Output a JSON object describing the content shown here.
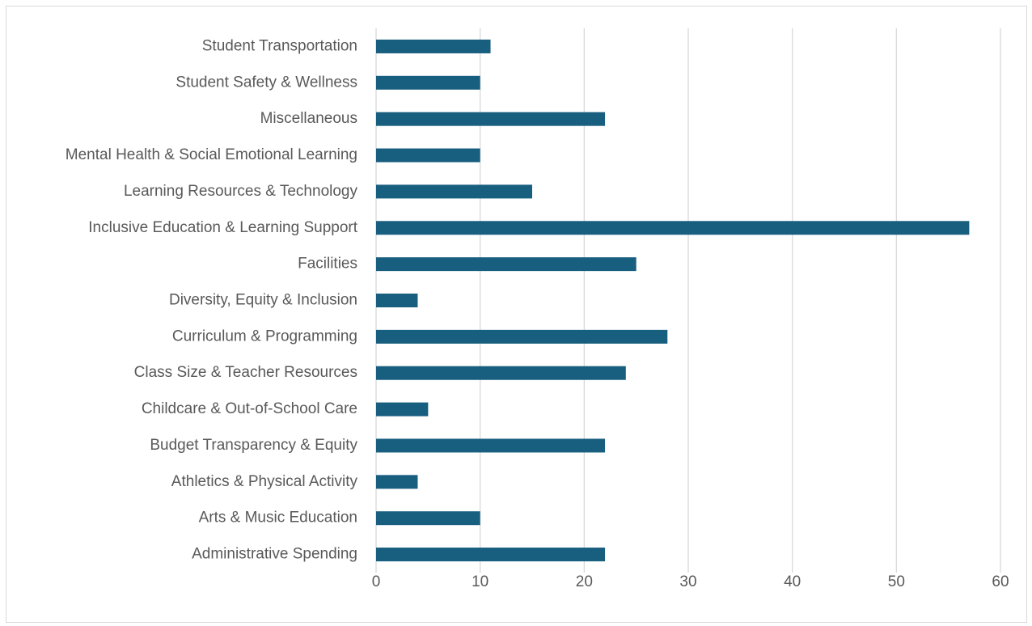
{
  "chart_data": {
    "type": "barh",
    "categories": [
      "Student Transportation",
      "Student Safety & Wellness",
      "Miscellaneous",
      "Mental Health & Social Emotional Learning",
      "Learning Resources & Technology",
      "Inclusive Education & Learning Support",
      "Facilities",
      "Diversity, Equity & Inclusion",
      "Curriculum & Programming",
      "Class Size & Teacher Resources",
      "Childcare & Out-of-School Care",
      "Budget Transparency & Equity",
      "Athletics & Physical Activity",
      "Arts & Music Education",
      "Administrative Spending"
    ],
    "values": [
      11,
      10,
      22,
      10,
      15,
      57,
      25,
      4,
      28,
      24,
      5,
      22,
      4,
      10,
      22
    ],
    "color": "#185e7f",
    "xlim": [
      0,
      60
    ],
    "xticks": [
      0,
      10,
      20,
      30,
      40,
      50,
      60
    ],
    "grid": true
  }
}
